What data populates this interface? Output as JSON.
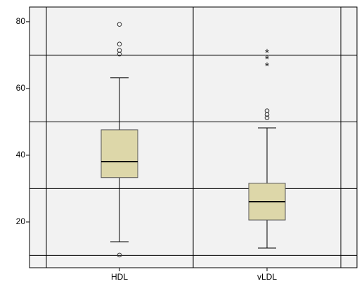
{
  "chart_data": {
    "type": "box",
    "categories": [
      "HDL",
      "vLDL"
    ],
    "boxes": [
      {
        "min": 14.1,
        "q1": 33.3,
        "median": 38.1,
        "q3": 47.6,
        "max": 63.2,
        "outliers": [
          79.2,
          73.3,
          71.4,
          70.3,
          10.1
        ],
        "extremes": []
      },
      {
        "min": 12.2,
        "q1": 20.6,
        "median": 26.1,
        "q3": 31.6,
        "max": 48.2,
        "outliers": [
          53.3,
          52.2,
          51.2
        ],
        "extremes": [
          71.2,
          69.3,
          67.2
        ]
      }
    ],
    "color": "#ddd7a9",
    "ylim": [
      6.3,
      84.4
    ],
    "yticks": [
      20,
      40,
      60,
      80
    ],
    "ygrid": [
      10,
      30,
      50,
      70
    ],
    "grid": true
  }
}
